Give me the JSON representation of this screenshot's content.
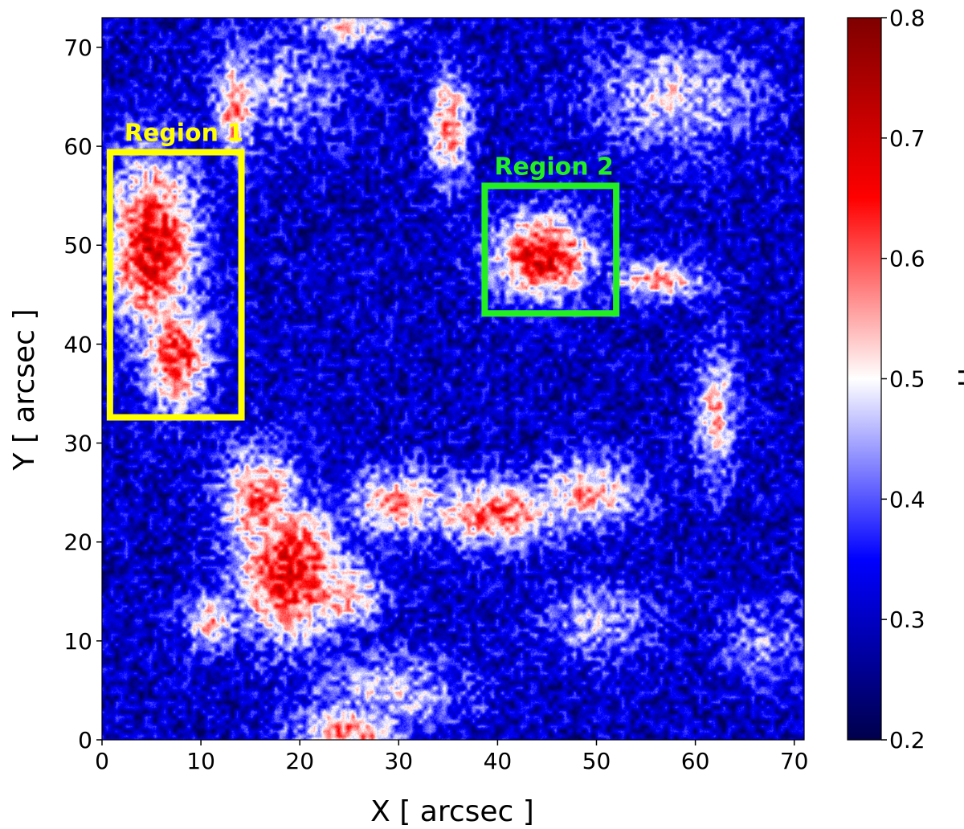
{
  "chart_data": {
    "type": "heatmap",
    "xlabel": "X [ arcsec ]",
    "ylabel": "Y [ arcsec ]",
    "xlim": [
      0,
      71
    ],
    "ylim": [
      0,
      73
    ],
    "x_ticks": [
      0,
      10,
      20,
      30,
      40,
      50,
      60,
      70
    ],
    "y_ticks": [
      0,
      10,
      20,
      30,
      40,
      50,
      60,
      70
    ],
    "colorbar": {
      "label": "H",
      "range": [
        0.2,
        0.8
      ],
      "ticks": [
        0.2,
        0.3,
        0.4,
        0.5,
        0.6,
        0.7,
        0.8
      ],
      "colormap": "seismic",
      "stops": [
        {
          "value": 0.2,
          "color": "#00004c"
        },
        {
          "value": 0.35,
          "color": "#0000ff"
        },
        {
          "value": 0.5,
          "color": "#ffffff"
        },
        {
          "value": 0.65,
          "color": "#ff0000"
        },
        {
          "value": 0.8,
          "color": "#7f0000"
        }
      ]
    },
    "background_value": 0.3,
    "features": [
      {
        "x": 5,
        "y": 50,
        "sx": 3.2,
        "sy": 6.5,
        "peak": 0.68
      },
      {
        "x": 7.5,
        "y": 39,
        "sx": 2.5,
        "sy": 4,
        "peak": 0.64
      },
      {
        "x": 13.5,
        "y": 64,
        "sx": 1.5,
        "sy": 4,
        "peak": 0.58
      },
      {
        "x": 44.5,
        "y": 49,
        "sx": 3.5,
        "sy": 3,
        "peak": 0.69
      },
      {
        "x": 56,
        "y": 46.5,
        "sx": 3.5,
        "sy": 1.5,
        "peak": 0.56
      },
      {
        "x": 35,
        "y": 62,
        "sx": 1.5,
        "sy": 4,
        "peak": 0.58
      },
      {
        "x": 19,
        "y": 17,
        "sx": 4,
        "sy": 5,
        "peak": 0.67
      },
      {
        "x": 16,
        "y": 24,
        "sx": 3,
        "sy": 4,
        "peak": 0.6
      },
      {
        "x": 24,
        "y": 15,
        "sx": 3,
        "sy": 2.5,
        "peak": 0.58
      },
      {
        "x": 30,
        "y": 24,
        "sx": 4,
        "sy": 2.5,
        "peak": 0.56
      },
      {
        "x": 40,
        "y": 23,
        "sx": 5,
        "sy": 2.5,
        "peak": 0.6
      },
      {
        "x": 49,
        "y": 25,
        "sx": 4,
        "sy": 2.5,
        "peak": 0.55
      },
      {
        "x": 62,
        "y": 33,
        "sx": 1.5,
        "sy": 5,
        "peak": 0.54
      },
      {
        "x": 25,
        "y": 1,
        "sx": 4,
        "sy": 2,
        "peak": 0.58
      },
      {
        "x": 11,
        "y": 12,
        "sx": 2,
        "sy": 2,
        "peak": 0.55
      },
      {
        "x": 58,
        "y": 65,
        "sx": 6,
        "sy": 4,
        "peak": 0.48
      },
      {
        "x": 25,
        "y": 72,
        "sx": 4,
        "sy": 1.5,
        "peak": 0.52
      },
      {
        "x": 50,
        "y": 12,
        "sx": 4,
        "sy": 3,
        "peak": 0.46
      },
      {
        "x": 29,
        "y": 5,
        "sx": 6,
        "sy": 3,
        "peak": 0.47
      },
      {
        "x": 18,
        "y": 66,
        "sx": 5,
        "sy": 4,
        "peak": 0.44
      },
      {
        "x": 67,
        "y": 10,
        "sx": 3,
        "sy": 3,
        "peak": 0.43
      }
    ],
    "annotations": [
      {
        "label": "Region 1",
        "color": "#ffff00",
        "x0": 0.8,
        "x1": 14.1,
        "y0": 32.6,
        "y1": 59.4
      },
      {
        "label": "Region 2",
        "color": "#22ee22",
        "x0": 38.7,
        "x1": 52,
        "y0": 43.1,
        "y1": 56
      }
    ]
  }
}
